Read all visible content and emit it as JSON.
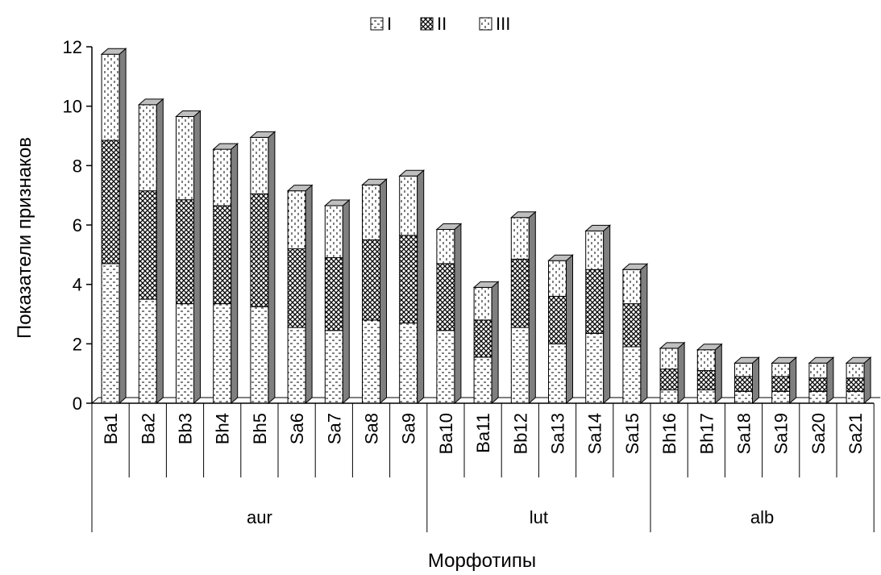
{
  "chart_data": {
    "type": "bar",
    "stacked": true,
    "xlabel": "Морфотипы",
    "ylabel": "Показатели признаков",
    "ylim": [
      0,
      12
    ],
    "yticks": [
      0,
      2,
      4,
      6,
      8,
      10,
      12
    ],
    "legend_position": "top",
    "categories": [
      "Ba1",
      "Ba2",
      "Bb3",
      "Bh4",
      "Bh5",
      "Sa6",
      "Sa7",
      "Sa8",
      "Sa9",
      "Ba10",
      "Ba11",
      "Bb12",
      "Sa13",
      "Sa14",
      "Sa15",
      "Bh16",
      "Bh17",
      "Sa18",
      "Sa19",
      "Sa20",
      "Sa21"
    ],
    "groups": [
      {
        "label": "aur",
        "count": 9
      },
      {
        "label": "lut",
        "count": 6
      },
      {
        "label": "alb",
        "count": 6
      }
    ],
    "series": [
      {
        "name": "I",
        "values": [
          4.7,
          3.5,
          3.35,
          3.35,
          3.25,
          2.55,
          2.45,
          2.8,
          2.7,
          2.45,
          1.55,
          2.55,
          2.0,
          2.35,
          1.9,
          0.45,
          0.45,
          0.4,
          0.4,
          0.4,
          0.4
        ]
      },
      {
        "name": "II",
        "values": [
          4.15,
          3.65,
          3.5,
          3.3,
          3.8,
          2.65,
          2.45,
          2.7,
          2.95,
          2.25,
          1.25,
          2.3,
          1.6,
          2.15,
          1.45,
          0.7,
          0.65,
          0.5,
          0.5,
          0.45,
          0.45
        ]
      },
      {
        "name": "III",
        "values": [
          2.9,
          2.9,
          2.8,
          1.9,
          1.9,
          1.95,
          1.75,
          1.85,
          2.0,
          1.15,
          1.1,
          1.4,
          1.2,
          1.3,
          1.15,
          0.7,
          0.7,
          0.45,
          0.45,
          0.5,
          0.5
        ]
      }
    ],
    "colors": {
      "bar_fill": "#ffffff",
      "pattern": "#000000",
      "side_face": "#7f7f7f",
      "top_face": "#bfbfbf"
    }
  }
}
